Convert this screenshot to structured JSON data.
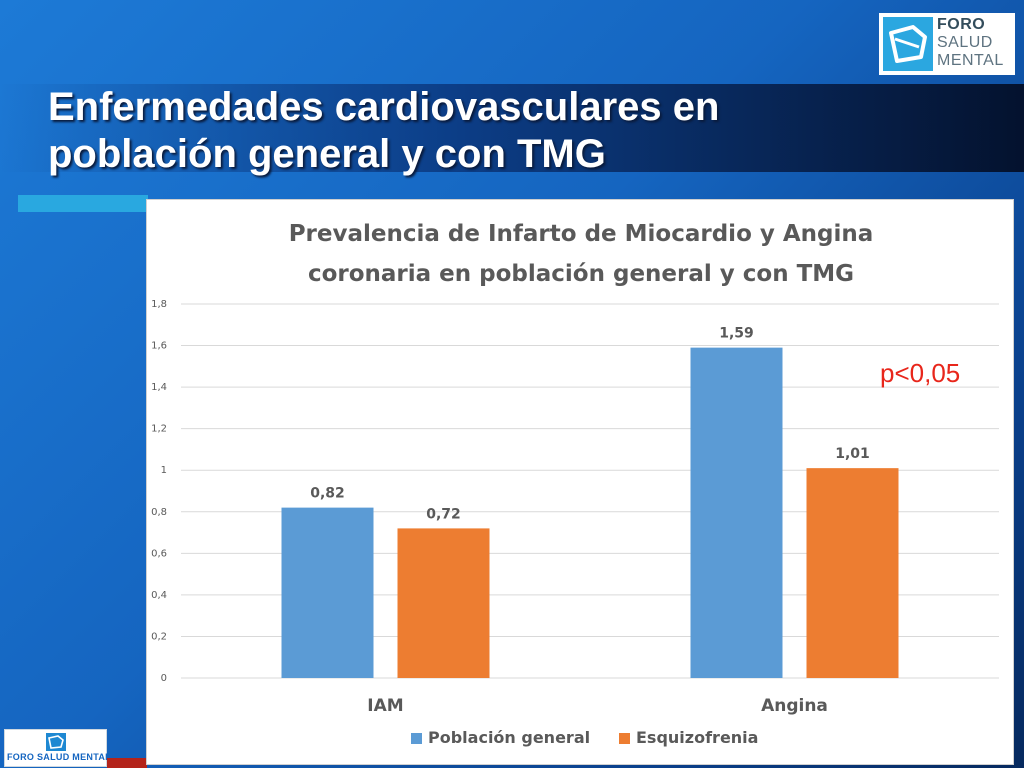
{
  "slide": {
    "title_line1": "Enfermedades cardiovasculares en",
    "title_line2": "población general y con TMG"
  },
  "logo": {
    "line1": "FORO",
    "line2": "SALUD",
    "line3": "MENTAL",
    "footer_text": "FORO SALUD MENTAL"
  },
  "annotation": "p<0,05",
  "colors": {
    "poblacion_general": "#5b9bd5",
    "esquizofrenia": "#ed7d31",
    "grid": "#d9d9d9",
    "text": "#595959"
  },
  "chart_data": {
    "type": "bar",
    "title_line1": "Prevalencia de Infarto de Miocardio y Angina",
    "title_line2": "coronaria en población general y con TMG",
    "categories": [
      "IAM",
      "Angina"
    ],
    "series": [
      {
        "name": "Población general",
        "values": [
          0.82,
          1.59
        ],
        "labels": [
          "0,82",
          "1,59"
        ]
      },
      {
        "name": "Esquizofrenia",
        "values": [
          0.72,
          1.01
        ],
        "labels": [
          "0,72",
          "1,01"
        ]
      }
    ],
    "ylim": [
      0,
      1.8
    ],
    "y_ticks": [
      "0",
      "0,2",
      "0,4",
      "0,6",
      "0,8",
      "1",
      "1,2",
      "1,4",
      "1,6",
      "1,8"
    ],
    "grid": true,
    "legend": "bottom"
  }
}
